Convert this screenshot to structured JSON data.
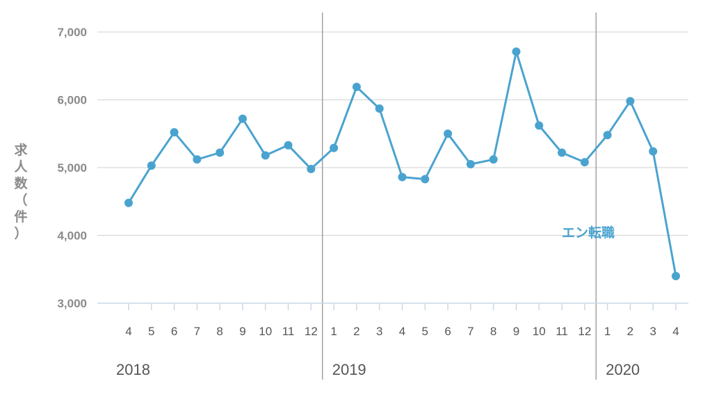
{
  "chart_data": {
    "type": "line",
    "ylabel": "求人数（件）",
    "ylim": [
      3000,
      7000
    ],
    "yticks": [
      "7,000",
      "6,000",
      "5,000",
      "4,000",
      "3,000"
    ],
    "ytick_values": [
      7000,
      6000,
      5000,
      4000,
      3000
    ],
    "grid": true,
    "year_labels": [
      {
        "label": "2018",
        "start_index": 0
      },
      {
        "label": "2019",
        "start_index": 9
      },
      {
        "label": "2020",
        "start_index": 21
      }
    ],
    "categories": [
      "4",
      "5",
      "6",
      "7",
      "8",
      "9",
      "10",
      "11",
      "12",
      "1",
      "2",
      "3",
      "4",
      "5",
      "6",
      "7",
      "8",
      "9",
      "10",
      "11",
      "12",
      "1",
      "2",
      "3",
      "4"
    ],
    "series": [
      {
        "name": "エン転職",
        "color": "#4aa3cf",
        "values": [
          4480,
          5030,
          5520,
          5120,
          5220,
          5720,
          5180,
          5330,
          4980,
          5290,
          6190,
          5870,
          4860,
          4830,
          5500,
          5050,
          5120,
          6710,
          5620,
          5220,
          5080,
          5480,
          5980,
          5240,
          3400
        ]
      }
    ]
  }
}
